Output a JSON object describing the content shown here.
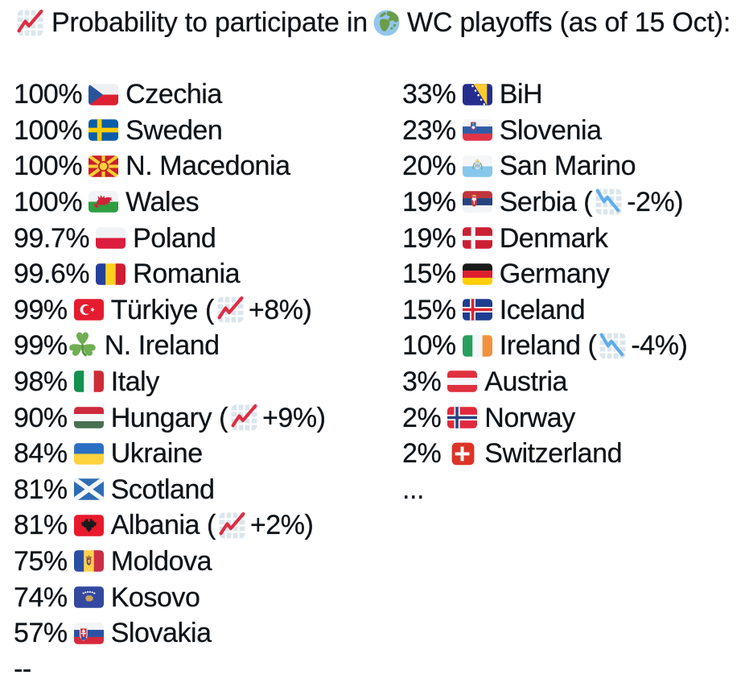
{
  "page": {
    "background_color": "#ffffff",
    "text_color": "#0f1419"
  },
  "title": {
    "leading_emoji": "chart-increasing",
    "text_before_globe": "Probability to participate in",
    "globe_emoji": "globe-europe-africa",
    "text_after_globe": "WC playoffs (as of 15 Oct):"
  },
  "list": {
    "change_format": {
      "before": " (",
      "after": ")"
    },
    "left_column": {
      "rows": [
        {
          "percent": "100%",
          "emoji": "czechia",
          "country": "Czechia"
        },
        {
          "percent": "100%",
          "emoji": "sweden",
          "country": "Sweden"
        },
        {
          "percent": "100%",
          "emoji": "macedonia",
          "country": "N. Macedonia"
        },
        {
          "percent": "100%",
          "emoji": "wales",
          "country": "Wales"
        },
        {
          "percent": "99.7%",
          "emoji": "poland",
          "country": "Poland"
        },
        {
          "percent": "99.6%",
          "emoji": "romania",
          "country": "Romania"
        },
        {
          "percent": "99%",
          "emoji": "turkiye",
          "country": "Türkiye",
          "trend": "up",
          "change": "+8%"
        },
        {
          "percent": "99%",
          "emoji": "shamrock",
          "country": "N. Ireland",
          "tight": true
        },
        {
          "percent": "98%",
          "emoji": "italy",
          "country": "Italy"
        },
        {
          "percent": "90%",
          "emoji": "hungary",
          "country": "Hungary",
          "trend": "up",
          "change": "+9%"
        },
        {
          "percent": "84%",
          "emoji": "ukraine",
          "country": "Ukraine"
        },
        {
          "percent": "81%",
          "emoji": "scotland",
          "country": "Scotland"
        },
        {
          "percent": "81%",
          "emoji": "albania",
          "country": "Albania",
          "trend": "up",
          "change": "+2%"
        },
        {
          "percent": "75%",
          "emoji": "moldova",
          "country": "Moldova"
        },
        {
          "percent": "74%",
          "emoji": "kosovo",
          "country": "Kosovo"
        },
        {
          "percent": "57%",
          "emoji": "slovakia",
          "country": "Slovakia"
        }
      ],
      "footer": "--"
    },
    "right_column": {
      "rows": [
        {
          "percent": "33%",
          "emoji": "bosnia",
          "country": "BiH"
        },
        {
          "percent": "23%",
          "emoji": "slovenia",
          "country": "Slovenia"
        },
        {
          "percent": "20%",
          "emoji": "san-marino",
          "country": "San Marino"
        },
        {
          "percent": "19%",
          "emoji": "serbia",
          "country": "Serbia",
          "trend": "down",
          "change": "-2%"
        },
        {
          "percent": "19%",
          "emoji": "denmark",
          "country": "Denmark"
        },
        {
          "percent": "15%",
          "emoji": "germany",
          "country": "Germany"
        },
        {
          "percent": "15%",
          "emoji": "iceland",
          "country": "Iceland"
        },
        {
          "percent": "10%",
          "emoji": "ireland",
          "country": "Ireland",
          "trend": "down",
          "change": "-4%"
        },
        {
          "percent": "3%",
          "emoji": "austria",
          "country": "Austria"
        },
        {
          "percent": "2%",
          "emoji": "norway",
          "country": "Norway"
        },
        {
          "percent": "2%",
          "emoji": "switzerland",
          "country": "Switzerland"
        }
      ],
      "footer": "..."
    }
  },
  "colors": {
    "trend_up_line": "#DD2E44",
    "trend_down_line": "#5DADEC",
    "chart_grid_bg": "#DCE6EC"
  }
}
